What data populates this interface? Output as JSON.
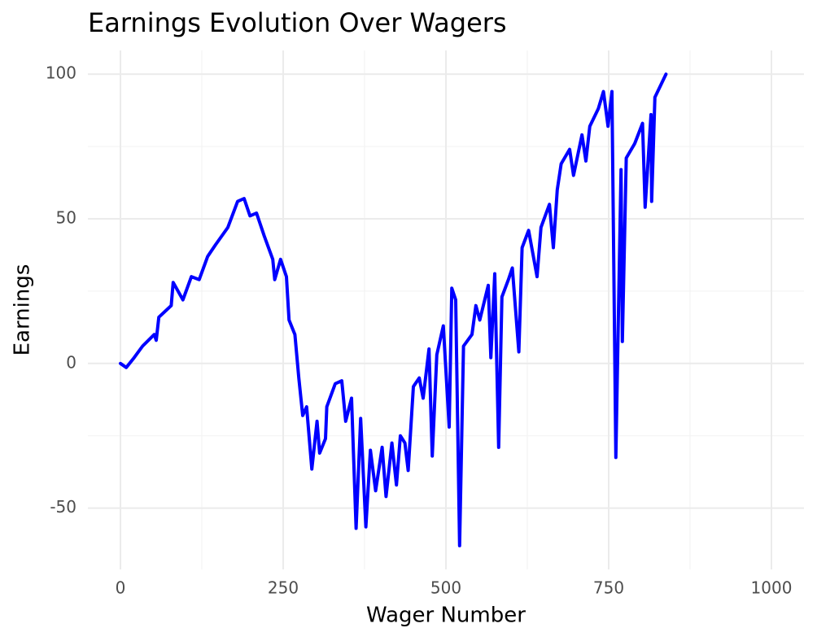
{
  "chart_data": {
    "type": "line",
    "title": "Earnings Evolution Over Wagers",
    "x_label": "Wager Number",
    "y_label": "Earnings",
    "xlim": [
      -50,
      1050
    ],
    "ylim": [
      -71.2,
      108.2
    ],
    "xticks": [
      0,
      250,
      500,
      750,
      1000
    ],
    "yticks": [
      -50,
      0,
      50,
      100
    ],
    "xminor": [
      125,
      375,
      625,
      875
    ],
    "yminor": [
      -25,
      25,
      75
    ],
    "grid": true,
    "series": [
      {
        "name": "Earnings",
        "color": "#0000ff",
        "x": [
          0,
          9,
          21,
          34,
          52,
          55,
          59,
          78,
          81,
          96,
          109,
          121,
          134,
          146,
          165,
          180,
          190,
          199,
          209,
          221,
          234,
          237,
          246,
          255,
          259,
          268,
          274,
          280,
          286,
          294,
          302,
          306,
          315,
          317,
          330,
          340,
          346,
          355,
          362,
          369,
          377,
          384,
          392,
          402,
          408,
          417,
          424,
          430,
          437,
          442,
          450,
          459,
          465,
          474,
          479,
          486,
          496,
          505,
          509,
          515,
          521,
          527,
          540,
          546,
          552,
          565,
          569,
          575,
          581,
          586,
          596,
          602,
          612,
          617,
          627,
          640,
          646,
          659,
          665,
          671,
          677,
          690,
          696,
          709,
          715,
          721,
          734,
          742,
          749,
          755,
          761,
          769,
          771,
          777,
          790,
          802,
          806,
          815,
          816,
          821,
          838
        ],
        "values": [
          0,
          -1.4,
          2,
          6,
          10,
          8,
          16,
          20,
          28,
          22,
          30,
          29,
          37,
          41,
          47,
          56,
          57,
          51,
          52,
          44,
          36,
          29,
          36,
          30,
          15,
          10,
          -5,
          -18,
          -15,
          -36.5,
          -20,
          -31,
          -26,
          -15,
          -7,
          -6,
          -20,
          -12,
          -57,
          -19,
          -56.5,
          -30,
          -44,
          -29,
          -46,
          -27.5,
          -42,
          -25,
          -27.5,
          -37,
          -8,
          -5,
          -12,
          5,
          -32,
          3,
          13,
          -22,
          26,
          22,
          -63,
          6,
          10,
          20,
          15,
          27,
          2,
          31,
          -29,
          23,
          29,
          33,
          4,
          40,
          46,
          30,
          47,
          55,
          40,
          60,
          69,
          74,
          65,
          79,
          70,
          82,
          88,
          94,
          82,
          94,
          -32.5,
          67,
          7.6,
          71,
          76,
          83,
          54,
          86,
          56,
          92,
          100
        ]
      }
    ]
  }
}
